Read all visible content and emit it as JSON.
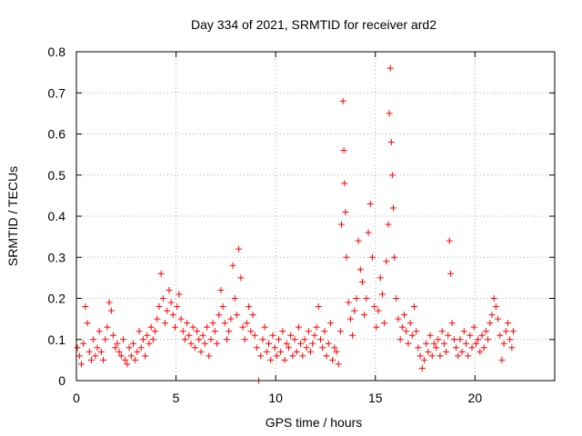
{
  "chart_data": {
    "type": "scatter",
    "title": "Day 334 of 2021, SRMTID for receiver ard2",
    "xlabel": "GPS time / hours",
    "ylabel": "SRMTID / TECUs",
    "xlim": [
      0,
      24
    ],
    "ylim": [
      0,
      0.8
    ],
    "grid": true,
    "marker": "+",
    "color": "#ff0000",
    "x_ticks": [
      {
        "value": 0,
        "label": "0"
      },
      {
        "value": 5,
        "label": "5"
      },
      {
        "value": 10,
        "label": "10"
      },
      {
        "value": 15,
        "label": "15"
      },
      {
        "value": 20,
        "label": "20"
      }
    ],
    "y_ticks": [
      {
        "value": 0,
        "label": "0"
      },
      {
        "value": 0.1,
        "label": "0.1"
      },
      {
        "value": 0.2,
        "label": "0.2"
      },
      {
        "value": 0.3,
        "label": "0.3"
      },
      {
        "value": 0.4,
        "label": "0.4"
      },
      {
        "value": 0.5,
        "label": "0.5"
      },
      {
        "value": 0.6,
        "label": "0.6"
      },
      {
        "value": 0.7,
        "label": "0.7"
      },
      {
        "value": 0.8,
        "label": "0.8"
      }
    ],
    "series": [
      {
        "name": "ard2",
        "points": [
          [
            0.05,
            0.08
          ],
          [
            0.15,
            0.06
          ],
          [
            0.25,
            0.04
          ],
          [
            0.35,
            0.09
          ],
          [
            0.45,
            0.18
          ],
          [
            0.55,
            0.14
          ],
          [
            0.65,
            0.07
          ],
          [
            0.75,
            0.05
          ],
          [
            0.85,
            0.1
          ],
          [
            0.95,
            0.06
          ],
          [
            1.05,
            0.08
          ],
          [
            1.15,
            0.12
          ],
          [
            1.25,
            0.07
          ],
          [
            1.35,
            0.05
          ],
          [
            1.45,
            0.1
          ],
          [
            1.55,
            0.13
          ],
          [
            1.65,
            0.19
          ],
          [
            1.75,
            0.17
          ],
          [
            1.85,
            0.11
          ],
          [
            1.95,
            0.08
          ],
          [
            2.05,
            0.09
          ],
          [
            2.15,
            0.07
          ],
          [
            2.25,
            0.06
          ],
          [
            2.35,
            0.1
          ],
          [
            2.45,
            0.05
          ],
          [
            2.55,
            0.04
          ],
          [
            2.65,
            0.08
          ],
          [
            2.75,
            0.06
          ],
          [
            2.85,
            0.09
          ],
          [
            2.95,
            0.05
          ],
          [
            3.05,
            0.07
          ],
          [
            3.15,
            0.12
          ],
          [
            3.25,
            0.08
          ],
          [
            3.35,
            0.1
          ],
          [
            3.45,
            0.06
          ],
          [
            3.55,
            0.11
          ],
          [
            3.65,
            0.09
          ],
          [
            3.75,
            0.13
          ],
          [
            3.85,
            0.1
          ],
          [
            3.95,
            0.12
          ],
          [
            4.05,
            0.15
          ],
          [
            4.15,
            0.18
          ],
          [
            4.25,
            0.26
          ],
          [
            4.35,
            0.2
          ],
          [
            4.45,
            0.14
          ],
          [
            4.55,
            0.17
          ],
          [
            4.65,
            0.22
          ],
          [
            4.75,
            0.19
          ],
          [
            4.85,
            0.16
          ],
          [
            4.95,
            0.13
          ],
          [
            5.05,
            0.18
          ],
          [
            5.15,
            0.21
          ],
          [
            5.25,
            0.15
          ],
          [
            5.35,
            0.12
          ],
          [
            5.45,
            0.1
          ],
          [
            5.55,
            0.14
          ],
          [
            5.65,
            0.11
          ],
          [
            5.75,
            0.09
          ],
          [
            5.85,
            0.13
          ],
          [
            5.95,
            0.08
          ],
          [
            6.05,
            0.12
          ],
          [
            6.15,
            0.1
          ],
          [
            6.25,
            0.07
          ],
          [
            6.35,
            0.11
          ],
          [
            6.45,
            0.09
          ],
          [
            6.55,
            0.13
          ],
          [
            6.65,
            0.06
          ],
          [
            6.75,
            0.1
          ],
          [
            6.85,
            0.14
          ],
          [
            6.95,
            0.12
          ],
          [
            7.05,
            0.09
          ],
          [
            7.15,
            0.16
          ],
          [
            7.25,
            0.22
          ],
          [
            7.35,
            0.18
          ],
          [
            7.45,
            0.14
          ],
          [
            7.55,
            0.1
          ],
          [
            7.65,
            0.12
          ],
          [
            7.75,
            0.15
          ],
          [
            7.85,
            0.28
          ],
          [
            7.95,
            0.2
          ],
          [
            8.05,
            0.16
          ],
          [
            8.15,
            0.32
          ],
          [
            8.25,
            0.25
          ],
          [
            8.35,
            0.13
          ],
          [
            8.45,
            0.1
          ],
          [
            8.55,
            0.14
          ],
          [
            8.65,
            0.18
          ],
          [
            8.75,
            0.12
          ],
          [
            8.85,
            0.16
          ],
          [
            8.95,
            0.11
          ],
          [
            9.05,
            0.08
          ],
          [
            9.15,
            0.0
          ],
          [
            9.25,
            0.06
          ],
          [
            9.35,
            0.1
          ],
          [
            9.45,
            0.13
          ],
          [
            9.55,
            0.07
          ],
          [
            9.65,
            0.09
          ],
          [
            9.75,
            0.05
          ],
          [
            9.85,
            0.11
          ],
          [
            9.95,
            0.08
          ],
          [
            10.05,
            0.06
          ],
          [
            10.15,
            0.1
          ],
          [
            10.25,
            0.07
          ],
          [
            10.35,
            0.12
          ],
          [
            10.45,
            0.05
          ],
          [
            10.55,
            0.09
          ],
          [
            10.65,
            0.08
          ],
          [
            10.75,
            0.11
          ],
          [
            10.85,
            0.06
          ],
          [
            10.95,
            0.1
          ],
          [
            11.05,
            0.07
          ],
          [
            11.15,
            0.13
          ],
          [
            11.25,
            0.09
          ],
          [
            11.35,
            0.06
          ],
          [
            11.45,
            0.1
          ],
          [
            11.55,
            0.08
          ],
          [
            11.65,
            0.12
          ],
          [
            11.75,
            0.07
          ],
          [
            11.85,
            0.09
          ],
          [
            11.95,
            0.11
          ],
          [
            12.05,
            0.13
          ],
          [
            12.15,
            0.18
          ],
          [
            12.25,
            0.1
          ],
          [
            12.35,
            0.08
          ],
          [
            12.45,
            0.12
          ],
          [
            12.55,
            0.06
          ],
          [
            12.65,
            0.09
          ],
          [
            12.75,
            0.14
          ],
          [
            12.85,
            0.05
          ],
          [
            12.95,
            0.08
          ],
          [
            13.05,
            0.07
          ],
          [
            13.15,
            0.04
          ],
          [
            13.25,
            0.12
          ],
          [
            13.3,
            0.38
          ],
          [
            13.38,
            0.68
          ],
          [
            13.42,
            0.56
          ],
          [
            13.45,
            0.48
          ],
          [
            13.5,
            0.41
          ],
          [
            13.55,
            0.3
          ],
          [
            13.65,
            0.19
          ],
          [
            13.75,
            0.15
          ],
          [
            13.85,
            0.11
          ],
          [
            13.95,
            0.17
          ],
          [
            14.05,
            0.2
          ],
          [
            14.15,
            0.34
          ],
          [
            14.25,
            0.27
          ],
          [
            14.35,
            0.24
          ],
          [
            14.45,
            0.16
          ],
          [
            14.55,
            0.2
          ],
          [
            14.65,
            0.36
          ],
          [
            14.75,
            0.43
          ],
          [
            14.85,
            0.3
          ],
          [
            14.95,
            0.18
          ],
          [
            15.05,
            0.13
          ],
          [
            15.15,
            0.17
          ],
          [
            15.25,
            0.25
          ],
          [
            15.35,
            0.21
          ],
          [
            15.45,
            0.14
          ],
          [
            15.55,
            0.29
          ],
          [
            15.65,
            0.38
          ],
          [
            15.7,
            0.65
          ],
          [
            15.75,
            0.76
          ],
          [
            15.8,
            0.58
          ],
          [
            15.85,
            0.5
          ],
          [
            15.9,
            0.42
          ],
          [
            15.95,
            0.3
          ],
          [
            16.05,
            0.2
          ],
          [
            16.15,
            0.15
          ],
          [
            16.25,
            0.1
          ],
          [
            16.35,
            0.13
          ],
          [
            16.45,
            0.16
          ],
          [
            16.55,
            0.12
          ],
          [
            16.65,
            0.09
          ],
          [
            16.75,
            0.14
          ],
          [
            16.85,
            0.11
          ],
          [
            16.95,
            0.18
          ],
          [
            17.05,
            0.12
          ],
          [
            17.15,
            0.08
          ],
          [
            17.25,
            0.06
          ],
          [
            17.35,
            0.03
          ],
          [
            17.45,
            0.05
          ],
          [
            17.55,
            0.09
          ],
          [
            17.65,
            0.07
          ],
          [
            17.75,
            0.11
          ],
          [
            17.85,
            0.06
          ],
          [
            17.95,
            0.09
          ],
          [
            18.05,
            0.08
          ],
          [
            18.15,
            0.1
          ],
          [
            18.25,
            0.06
          ],
          [
            18.35,
            0.12
          ],
          [
            18.45,
            0.09
          ],
          [
            18.55,
            0.07
          ],
          [
            18.65,
            0.11
          ],
          [
            18.72,
            0.34
          ],
          [
            18.78,
            0.26
          ],
          [
            18.85,
            0.14
          ],
          [
            18.95,
            0.1
          ],
          [
            19.05,
            0.08
          ],
          [
            19.15,
            0.06
          ],
          [
            19.25,
            0.1
          ],
          [
            19.35,
            0.07
          ],
          [
            19.45,
            0.12
          ],
          [
            19.55,
            0.09
          ],
          [
            19.65,
            0.06
          ],
          [
            19.75,
            0.11
          ],
          [
            19.85,
            0.08
          ],
          [
            19.95,
            0.13
          ],
          [
            20.05,
            0.09
          ],
          [
            20.15,
            0.1
          ],
          [
            20.25,
            0.07
          ],
          [
            20.35,
            0.11
          ],
          [
            20.45,
            0.08
          ],
          [
            20.55,
            0.12
          ],
          [
            20.65,
            0.1
          ],
          [
            20.75,
            0.14
          ],
          [
            20.85,
            0.16
          ],
          [
            20.95,
            0.2
          ],
          [
            21.05,
            0.18
          ],
          [
            21.15,
            0.15
          ],
          [
            21.25,
            0.11
          ],
          [
            21.35,
            0.05
          ],
          [
            21.45,
            0.09
          ],
          [
            21.55,
            0.12
          ],
          [
            21.65,
            0.14
          ],
          [
            21.75,
            0.1
          ],
          [
            21.85,
            0.08
          ],
          [
            21.92,
            0.12
          ]
        ]
      }
    ]
  }
}
